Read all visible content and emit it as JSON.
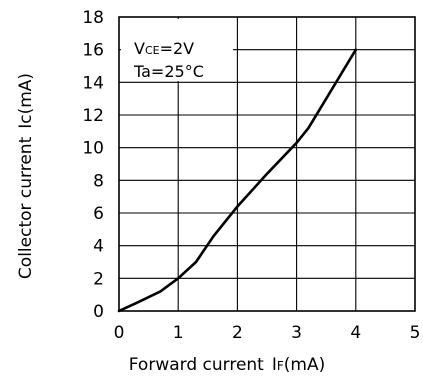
{
  "chart_data": {
    "type": "line",
    "title": "",
    "xlabel": "Forward current",
    "xlabel_symbol": "I",
    "xlabel_symbol_sub": "F",
    "xlabel_unit": "(mA)",
    "ylabel": "Collector current",
    "ylabel_symbol": "Ic",
    "ylabel_unit": "(mA)",
    "xlim": [
      0,
      5
    ],
    "ylim": [
      0,
      18
    ],
    "xticks": [
      "0",
      "1",
      "2",
      "3",
      "4",
      "5"
    ],
    "yticks": [
      "0",
      "2",
      "4",
      "6",
      "8",
      "10",
      "12",
      "14",
      "16",
      "18"
    ],
    "grid": true,
    "annotations": {
      "vce_symbol": "V",
      "vce_sub": "CE",
      "vce_value": "=2V",
      "ta_text": "Ta=25°C"
    },
    "series": [
      {
        "x": [
          0,
          0.3,
          0.7,
          1.0,
          1.3,
          1.6,
          2.0,
          2.5,
          3.0,
          3.2,
          3.5,
          4.0
        ],
        "y": [
          0,
          0.5,
          1.2,
          2.0,
          3.0,
          4.6,
          6.4,
          8.4,
          10.3,
          11.2,
          13.0,
          16.0
        ]
      }
    ]
  }
}
